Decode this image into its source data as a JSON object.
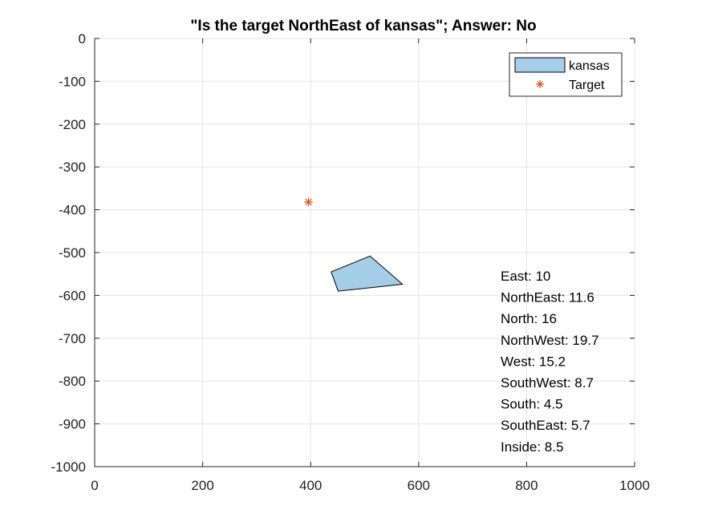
{
  "chart_data": {
    "type": "scatter",
    "title": "\"Is the target NorthEast of kansas\"; Answer: No",
    "xlabel": "",
    "ylabel": "",
    "xlim": [
      0,
      1000
    ],
    "ylim": [
      -1000,
      0
    ],
    "xticks": [
      0,
      200,
      400,
      600,
      800,
      1000
    ],
    "yticks": [
      0,
      -100,
      -200,
      -300,
      -400,
      -500,
      -600,
      -700,
      -800,
      -900,
      -1000
    ],
    "grid": true,
    "legend_position": "top-right",
    "series": [
      {
        "name": "kansas",
        "kind": "polygon",
        "color": "#a6cde8",
        "edge_color": "#000000",
        "points": [
          [
            438,
            -545
          ],
          [
            510,
            -508
          ],
          [
            570,
            -574
          ],
          [
            451,
            -590
          ]
        ]
      },
      {
        "name": "Target",
        "kind": "marker",
        "marker": "asterisk",
        "color": "#d95319",
        "points": [
          [
            396,
            -382
          ]
        ]
      }
    ],
    "annotations": [
      "East: 10",
      "NorthEast: 11.6",
      "North: 16",
      "NorthWest: 19.7",
      "West: 15.2",
      "SouthWest: 8.7",
      "South: 4.5",
      "SouthEast: 5.7",
      "Inside: 8.5"
    ]
  }
}
